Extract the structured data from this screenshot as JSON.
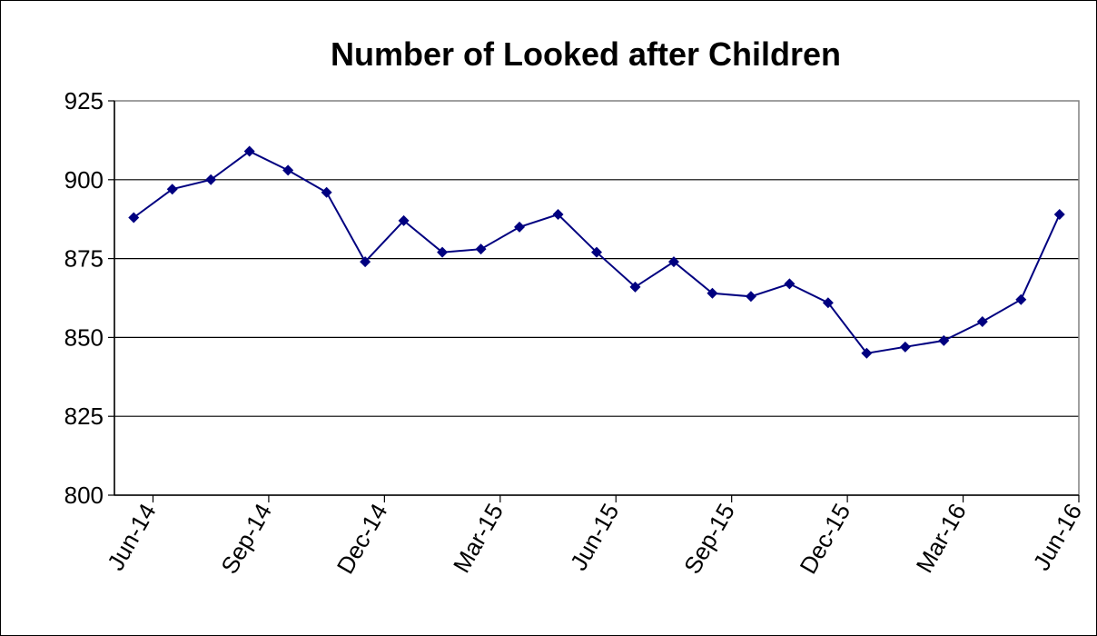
{
  "chart_data": {
    "type": "line",
    "title": "Number of Looked after Children",
    "xlabel": "",
    "ylabel": "",
    "ylim": [
      800,
      925
    ],
    "yticks": [
      800,
      825,
      850,
      875,
      900,
      925
    ],
    "grid": "horizontal",
    "legend": "none",
    "x": [
      "Jun-14",
      "Jul-14",
      "Aug-14",
      "Sep-14",
      "Oct-14",
      "Nov-14",
      "Dec-14",
      "Jan-15",
      "Feb-15",
      "Mar-15",
      "Apr-15",
      "May-15",
      "Jun-15",
      "Jul-15",
      "Aug-15",
      "Sep-15",
      "Oct-15",
      "Nov-15",
      "Dec-15",
      "Jan-16",
      "Feb-16",
      "Mar-16",
      "Apr-16",
      "May-16",
      "Jun-16"
    ],
    "xtick_labels": [
      "Jun-14",
      "Sep-14",
      "Dec-14",
      "Mar-15",
      "Jun-15",
      "Sep-15",
      "Dec-15",
      "Mar-16",
      "Jun-16"
    ],
    "series": [
      {
        "values": [
          888,
          897,
          900,
          909,
          903,
          896,
          874,
          887,
          877,
          878,
          885,
          889,
          877,
          866,
          874,
          864,
          863,
          867,
          861,
          845,
          847,
          849,
          855,
          862,
          889
        ],
        "color": "#000080",
        "marker": "diamond"
      }
    ]
  }
}
